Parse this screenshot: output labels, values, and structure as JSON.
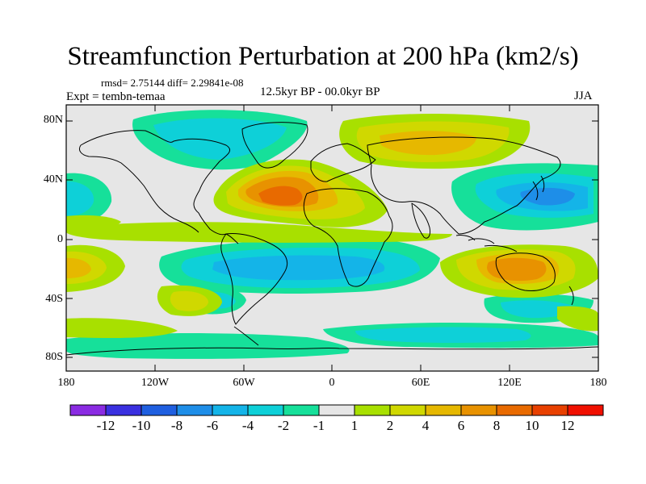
{
  "title": "Streamfunction Perturbation at 200 hPa (km2/s)",
  "stats_line": "rmsd= 2.75144 diff= 2.29841e-08",
  "experiment_line": "Expt = tembn-temaa",
  "period_label": "12.5kyr BP - 00.0kyr BP",
  "season_label": "JJA",
  "lat_labels": [
    "80N",
    "40N",
    "0",
    "40S",
    "80S"
  ],
  "lon_labels": [
    "180",
    "120W",
    "60W",
    "0",
    "60E",
    "120E",
    "180"
  ],
  "colorbar": {
    "labels": [
      "-12",
      "-10",
      "-8",
      "-6",
      "-4",
      "-2",
      "-1",
      "1",
      "2",
      "4",
      "6",
      "8",
      "10",
      "12"
    ],
    "colors": [
      "#8a2be2",
      "#3a30e0",
      "#1f5fe0",
      "#1e8ee8",
      "#14b4e8",
      "#0ed0d8",
      "#16e09a",
      "#e6e6e6",
      "#a8e000",
      "#d0d800",
      "#e6b800",
      "#e89200",
      "#e86a00",
      "#e84000",
      "#f01000"
    ]
  },
  "field_colors": {
    "neg_strong": "#1e8ee8",
    "neg_medium": "#14b4e8",
    "neg_weak": "#0ed0d8",
    "neg_light": "#16e09a",
    "pos_light": "#a8e000",
    "pos_weak": "#d0d800",
    "pos_medium": "#e6b800",
    "pos_strong": "#e89200",
    "pos_peak": "#e86a00",
    "background": "#e6e6e6"
  }
}
